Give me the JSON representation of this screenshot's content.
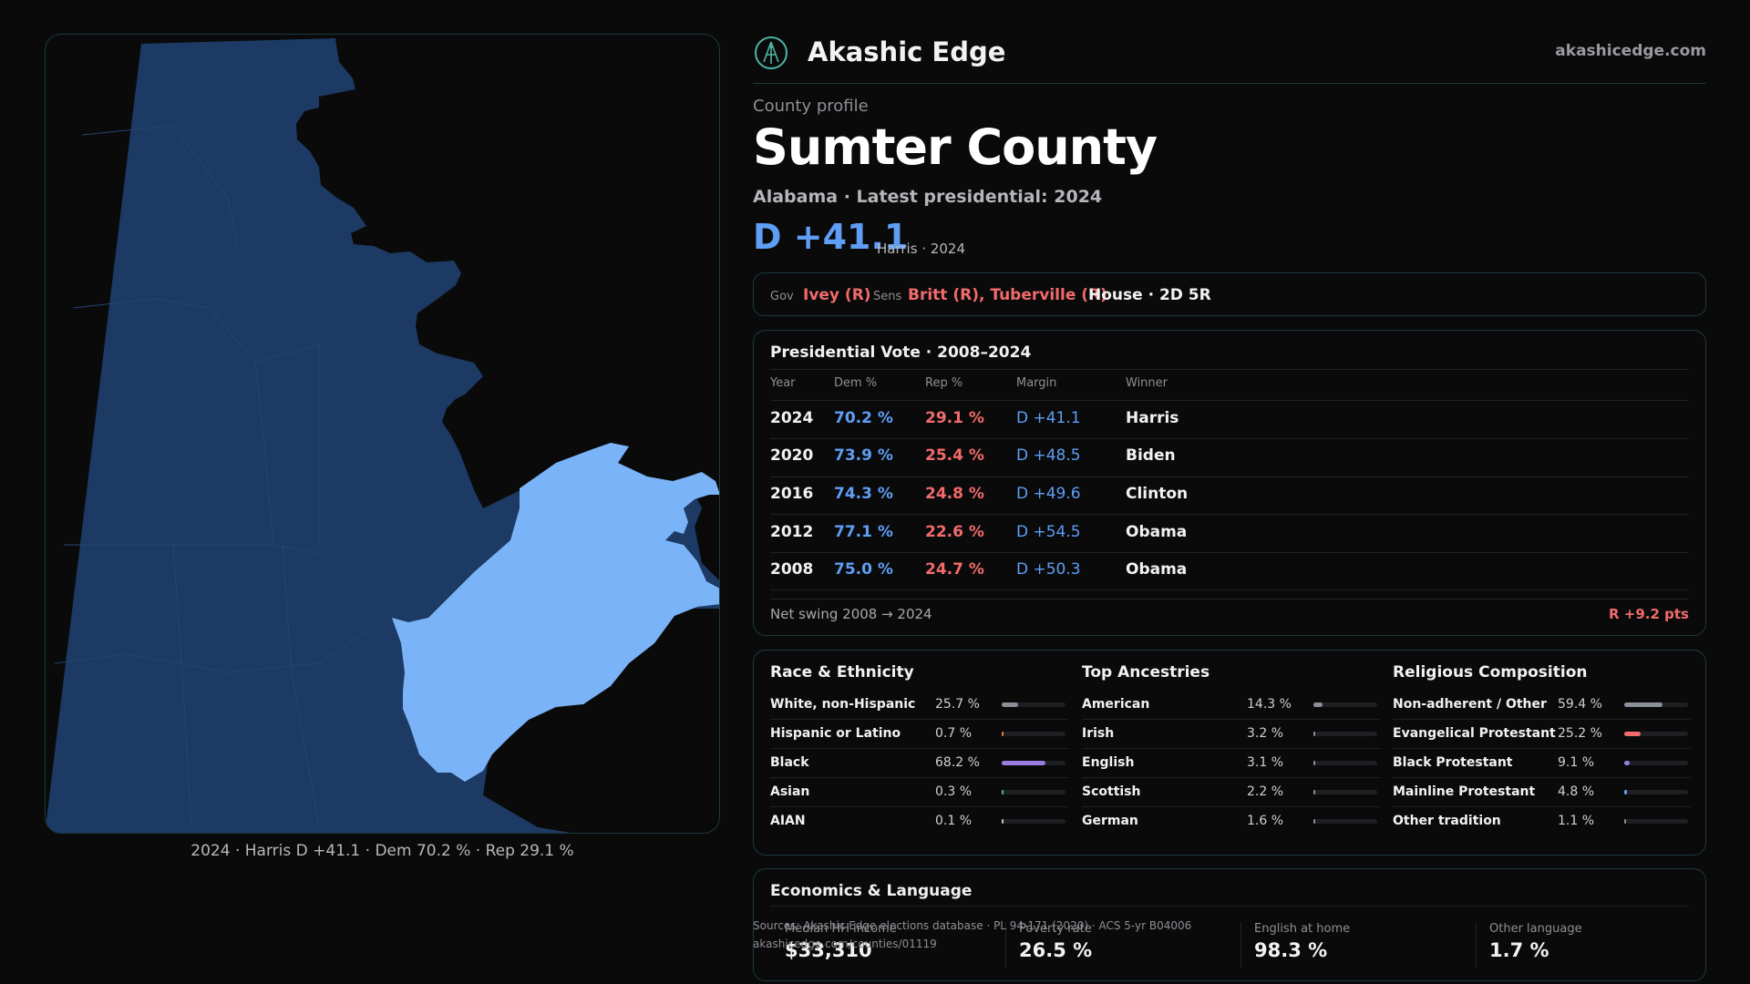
{
  "header": {
    "brand": "Akashic Edge",
    "site": "akashicedge.com"
  },
  "profile": {
    "eyebrow": "County profile",
    "title": "Sumter County",
    "subtitle": "Alabama · Latest presidential: 2024",
    "margin": "D +41.1",
    "margin_note": "Harris · 2024"
  },
  "officials": {
    "gov_label": "Gov",
    "gov": "Ivey (R)",
    "sens_label": "Sens",
    "sens": "Britt (R), Tuberville (R)",
    "house": "House · 2D 5R"
  },
  "presidential": {
    "title": "Presidential Vote · 2008–2024",
    "headers": [
      "Year",
      "Dem %",
      "Rep %",
      "Margin",
      "Winner"
    ],
    "rows": [
      {
        "year": "2024",
        "dem": "70.2 %",
        "rep": "29.1 %",
        "margin": "D +41.1",
        "winner": "Harris"
      },
      {
        "year": "2020",
        "dem": "73.9 %",
        "rep": "25.4 %",
        "margin": "D +48.5",
        "winner": "Biden"
      },
      {
        "year": "2016",
        "dem": "74.3 %",
        "rep": "24.8 %",
        "margin": "D +49.6",
        "winner": "Clinton"
      },
      {
        "year": "2012",
        "dem": "77.1 %",
        "rep": "22.6 %",
        "margin": "D +54.5",
        "winner": "Obama"
      },
      {
        "year": "2008",
        "dem": "75.0 %",
        "rep": "24.7 %",
        "margin": "D +50.3",
        "winner": "Obama"
      }
    ],
    "net_swing_label": "Net swing 2008 → 2024",
    "net_swing_value": "R +9.2 pts"
  },
  "race": {
    "title": "Race & Ethnicity",
    "items": [
      {
        "name": "White, non-Hispanic",
        "value": "25.7 %",
        "pct": 25.7,
        "color": "#8a8f99"
      },
      {
        "name": "Hispanic or Latino",
        "value": "0.7 %",
        "pct": 0.7,
        "color": "#e0823a"
      },
      {
        "name": "Black",
        "value": "68.2 %",
        "pct": 68.2,
        "color": "#9a7ee0"
      },
      {
        "name": "Asian",
        "value": "0.3 %",
        "pct": 0.3,
        "color": "#4fb3a5"
      },
      {
        "name": "AIAN",
        "value": "0.1 %",
        "pct": 0.1,
        "color": "#c0c0c0"
      }
    ]
  },
  "ancestry": {
    "title": "Top Ancestries",
    "items": [
      {
        "name": "American",
        "value": "14.3 %",
        "pct": 14.3,
        "color": "#8a8f99"
      },
      {
        "name": "Irish",
        "value": "3.2 %",
        "pct": 3.2,
        "color": "#8a8f99"
      },
      {
        "name": "English",
        "value": "3.1 %",
        "pct": 3.1,
        "color": "#8a8f99"
      },
      {
        "name": "Scottish",
        "value": "2.2 %",
        "pct": 2.2,
        "color": "#8a8f99"
      },
      {
        "name": "German",
        "value": "1.6 %",
        "pct": 1.6,
        "color": "#8a8f99"
      }
    ]
  },
  "religion": {
    "title": "Religious Composition",
    "items": [
      {
        "name": "Non-adherent / Other",
        "value": "59.4 %",
        "pct": 59.4,
        "color": "#8a8f99"
      },
      {
        "name": "Evangelical Protestant",
        "value": "25.2 %",
        "pct": 25.2,
        "color": "#f26b6b"
      },
      {
        "name": "Black Protestant",
        "value": "9.1 %",
        "pct": 9.1,
        "color": "#9a7ee0"
      },
      {
        "name": "Mainline Protestant",
        "value": "4.8 %",
        "pct": 4.8,
        "color": "#5f9ef5"
      },
      {
        "name": "Other tradition",
        "value": "1.1 %",
        "pct": 1.1,
        "color": "#8a8f99"
      }
    ]
  },
  "economics": {
    "title": "Economics & Language",
    "items": [
      {
        "label": "Median HH income",
        "value": "$33,310"
      },
      {
        "label": "Poverty rate",
        "value": "26.5 %"
      },
      {
        "label": "English at home",
        "value": "98.3 %"
      },
      {
        "label": "Other language",
        "value": "1.7 %"
      }
    ]
  },
  "sources": {
    "line1": "Sources: Akashic Edge elections database · PL 94-171 (2020) · ACS 5-yr B04006",
    "line2": "akashicedge.com/counties/01119"
  },
  "map": {
    "caption": "2024 · Harris D +41.1 · Dem 70.2 % · Rep 29.1 %",
    "region_color": "#1c3a63",
    "highlight_color": "#7ab3f7"
  }
}
